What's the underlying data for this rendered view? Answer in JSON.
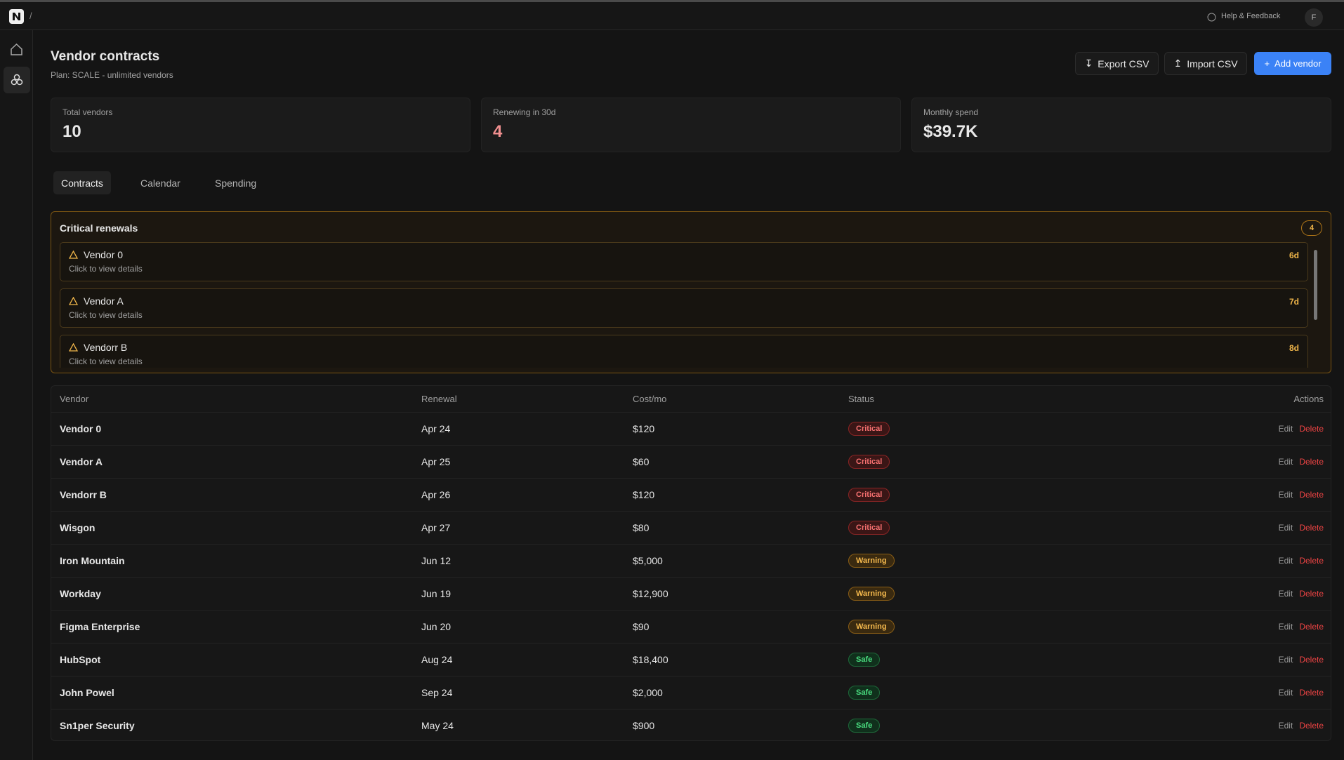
{
  "header": {
    "breadcrumb": "/",
    "help": "Help & Feedback",
    "avatar": "F"
  },
  "page": {
    "title": "Vendor contracts",
    "subtitle": "Plan: SCALE - unlimited vendors",
    "buttons": [
      "Export CSV",
      "Import CSV",
      "Add vendor"
    ]
  },
  "stats": [
    {
      "label": "Total vendors",
      "value": 10
    },
    {
      "label": "Renewing in 30d",
      "value": 4
    },
    {
      "label": "Monthly spend",
      "value": "$39.7K"
    }
  ],
  "tabs": [
    "Contracts",
    "Calendar",
    "Spending"
  ],
  "critical": {
    "title": "Critical renewals",
    "count": 4,
    "items": [
      {
        "name": "Vendor 0",
        "sub": "Click to view details",
        "days": "6d"
      },
      {
        "name": "Vendor A",
        "sub": "Click to view details",
        "days": "7d"
      },
      {
        "name": "Vendorr B",
        "sub": "Click to view details",
        "days": "8d"
      }
    ]
  },
  "table": {
    "columns": [
      "Vendor",
      "Renewal",
      "Cost/mo",
      "Status",
      "Actions"
    ],
    "actions": [
      "Edit",
      "Delete"
    ],
    "rows": [
      [
        "Vendor 0",
        "Apr 24",
        "$120",
        "Critical"
      ],
      [
        "Vendor A",
        "Apr 25",
        "$60",
        "Critical"
      ],
      [
        "Vendorr B",
        "Apr 26",
        "$120",
        "Critical"
      ],
      [
        "Wisgon",
        "Apr 27",
        "$80",
        "Critical"
      ],
      [
        "Iron Mountain",
        "Jun 12",
        "$5,000",
        "Warning"
      ],
      [
        "Workday",
        "Jun 19",
        "$12,900",
        "Warning"
      ],
      [
        "Figma Enterprise",
        "Jun 20",
        "$90",
        "Warning"
      ],
      [
        "HubSpot",
        "Aug 24",
        "$18,400",
        "Safe"
      ],
      [
        "John Powel",
        "Sep 24",
        "$2,000",
        "Safe"
      ],
      [
        "Sn1per Security",
        "May 24",
        "$900",
        "Safe"
      ]
    ]
  }
}
